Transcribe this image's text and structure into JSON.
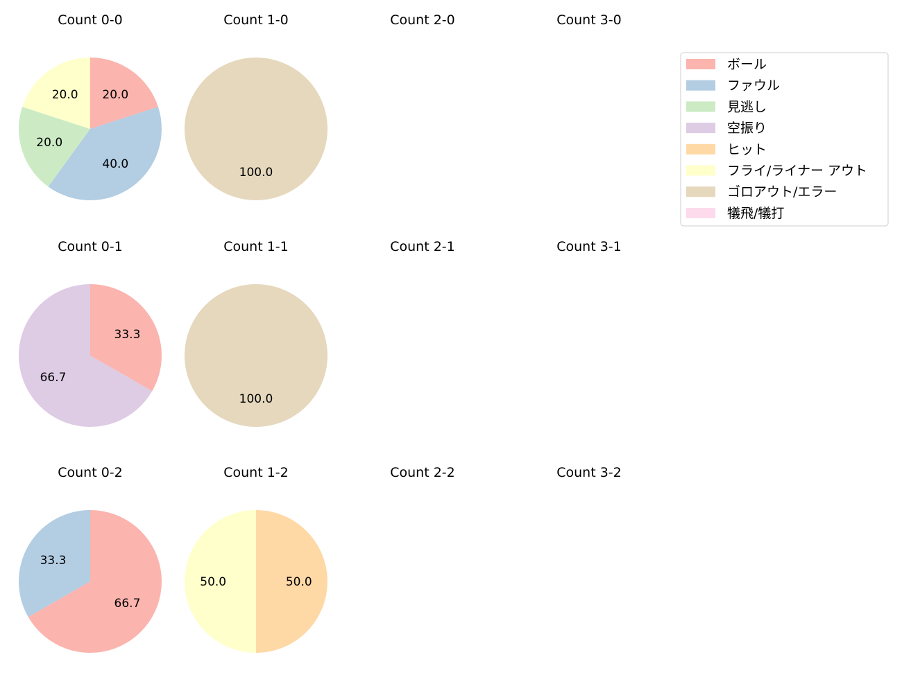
{
  "chart_data": {
    "type": "pie",
    "legend": {
      "placement": "top-right",
      "entries": [
        {
          "label": "ボール",
          "color": "#fbb4ae"
        },
        {
          "label": "ファウル",
          "color": "#b3cde3"
        },
        {
          "label": "見逃し",
          "color": "#ccebc5"
        },
        {
          "label": "空振り",
          "color": "#decbe4"
        },
        {
          "label": "ヒット",
          "color": "#fed9a6"
        },
        {
          "label": "フライ/ライナー アウト",
          "color": "#ffffcc"
        },
        {
          "label": "ゴロアウト/エラー",
          "color": "#e5d8bd"
        },
        {
          "label": "犠飛/犠打",
          "color": "#fddaec"
        }
      ]
    },
    "panels": [
      {
        "title": "Count 0-0",
        "slices": [
          {
            "label": "ボール",
            "value": 20.0
          },
          {
            "label": "ファウル",
            "value": 40.0
          },
          {
            "label": "見逃し",
            "value": 20.0
          },
          {
            "label": "フライ/ライナー アウト",
            "value": 20.0
          }
        ]
      },
      {
        "title": "Count 1-0",
        "slices": [
          {
            "label": "ゴロアウト/エラー",
            "value": 100.0
          }
        ]
      },
      {
        "title": "Count 2-0",
        "slices": []
      },
      {
        "title": "Count 3-0",
        "slices": []
      },
      {
        "title": "Count 0-1",
        "slices": [
          {
            "label": "ボール",
            "value": 33.3
          },
          {
            "label": "空振り",
            "value": 66.7
          }
        ]
      },
      {
        "title": "Count 1-1",
        "slices": [
          {
            "label": "ゴロアウト/エラー",
            "value": 100.0
          }
        ]
      },
      {
        "title": "Count 2-1",
        "slices": []
      },
      {
        "title": "Count 3-1",
        "slices": []
      },
      {
        "title": "Count 0-2",
        "slices": [
          {
            "label": "ボール",
            "value": 66.7
          },
          {
            "label": "ファウル",
            "value": 33.3
          }
        ]
      },
      {
        "title": "Count 1-2",
        "slices": [
          {
            "label": "ヒット",
            "value": 50.0
          },
          {
            "label": "フライ/ライナー アウト",
            "value": 50.0
          }
        ]
      },
      {
        "title": "Count 2-2",
        "slices": []
      },
      {
        "title": "Count 3-2",
        "slices": []
      }
    ]
  }
}
